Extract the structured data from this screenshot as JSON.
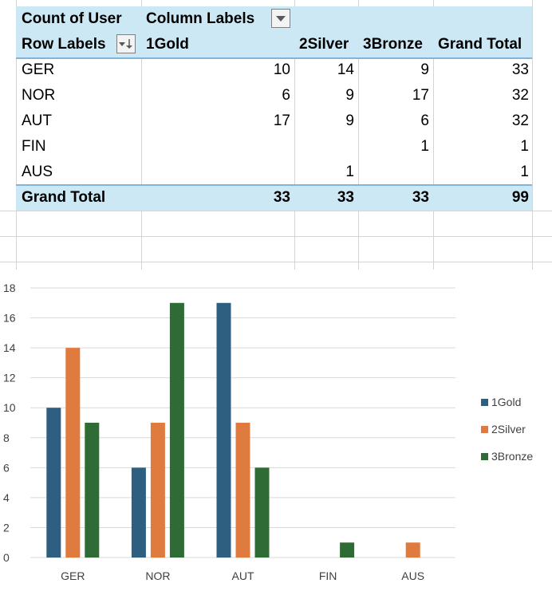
{
  "pivot": {
    "header1": {
      "value_label": "Count of User",
      "column_labels": "Column Labels"
    },
    "header2": {
      "row_labels": "Row Labels",
      "cols": [
        "1Gold",
        "2Silver",
        "3Bronze",
        "Grand Total"
      ]
    },
    "rows": [
      {
        "label": "GER",
        "values": [
          "10",
          "14",
          "9",
          "33"
        ]
      },
      {
        "label": "NOR",
        "values": [
          "6",
          "9",
          "17",
          "32"
        ]
      },
      {
        "label": "AUT",
        "values": [
          "17",
          "9",
          "6",
          "32"
        ]
      },
      {
        "label": "FIN",
        "values": [
          "",
          "",
          "1",
          "1"
        ]
      },
      {
        "label": "AUS",
        "values": [
          "",
          "1",
          "",
          "1"
        ]
      }
    ],
    "total": {
      "label": "Grand Total",
      "values": [
        "33",
        "33",
        "33",
        "99"
      ]
    }
  },
  "colors": {
    "header_fill": "#cde8f5",
    "gold": "#2e5f80",
    "silver": "#e07b3f",
    "bronze": "#2f6b35"
  },
  "icons": {
    "filter_dropdown": "dropdown-arrow-icon",
    "sort_filter": "sort-filter-icon"
  },
  "chart_data": {
    "type": "bar",
    "categories": [
      "GER",
      "NOR",
      "AUT",
      "FIN",
      "AUS"
    ],
    "series": [
      {
        "name": "1Gold",
        "values": [
          10,
          6,
          17,
          0,
          0
        ],
        "color": "#2e5f80"
      },
      {
        "name": "2Silver",
        "values": [
          14,
          9,
          9,
          0,
          1
        ],
        "color": "#e07b3f"
      },
      {
        "name": "3Bronze",
        "values": [
          9,
          17,
          6,
          1,
          0
        ],
        "color": "#2f6b35"
      }
    ],
    "yticks": [
      "0",
      "2",
      "4",
      "6",
      "8",
      "10",
      "12",
      "14",
      "16",
      "18"
    ],
    "ylim": [
      0,
      18
    ],
    "grid": true,
    "legend": "right"
  }
}
